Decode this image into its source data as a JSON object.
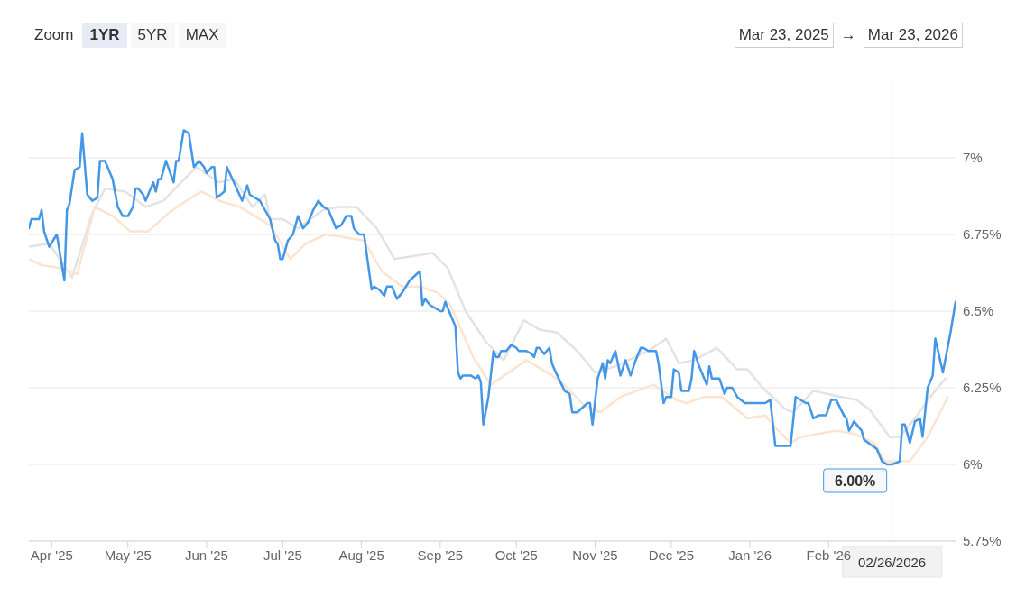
{
  "chart_data": {
    "type": "line",
    "xlim": [
      "2025-03-23",
      "2026-03-23"
    ],
    "xticks": [
      {
        "value": "2025-04-01",
        "label": "Apr '25"
      },
      {
        "value": "2025-05-01",
        "label": "May '25"
      },
      {
        "value": "2025-06-01",
        "label": "Jun '25"
      },
      {
        "value": "2025-07-01",
        "label": "Jul '25"
      },
      {
        "value": "2025-08-01",
        "label": "Aug '25"
      },
      {
        "value": "2025-09-01",
        "label": "Sep '25"
      },
      {
        "value": "2025-10-01",
        "label": "Oct '25"
      },
      {
        "value": "2025-11-01",
        "label": "Nov '25"
      },
      {
        "value": "2025-12-01",
        "label": "Dec '25"
      },
      {
        "value": "2026-01-01",
        "label": "Jan '26"
      },
      {
        "value": "2026-02-01",
        "label": "Feb '26"
      }
    ],
    "ylim": [
      5.75,
      7.25
    ],
    "yticks": [
      {
        "value": 5.75,
        "label": "5.75%"
      },
      {
        "value": 6,
        "label": "6%"
      },
      {
        "value": 6.25,
        "label": "6.25%"
      },
      {
        "value": 6.5,
        "label": "6.5%"
      },
      {
        "value": 6.75,
        "label": "6.75%"
      },
      {
        "value": 7,
        "label": "7%"
      }
    ],
    "grid": "y",
    "series": [
      {
        "color": "#e3e3e3",
        "x": [
          "2025-03-23",
          "2025-03-31",
          "2025-04-09",
          "2025-04-17",
          "2025-04-22",
          "2025-04-30",
          "2025-05-08",
          "2025-05-15",
          "2025-05-22",
          "2025-05-28",
          "2025-06-06",
          "2025-06-12",
          "2025-06-19",
          "2025-06-24",
          "2025-06-26",
          "2025-07-01",
          "2025-07-07",
          "2025-07-17",
          "2025-07-23",
          "2025-07-30",
          "2025-08-07",
          "2025-08-14",
          "2025-08-29",
          "2025-09-04",
          "2025-09-11",
          "2025-09-19",
          "2025-09-26",
          "2025-10-04",
          "2025-10-10",
          "2025-10-17",
          "2025-10-25",
          "2025-11-01",
          "2025-11-09",
          "2025-11-22",
          "2025-11-29",
          "2025-12-04",
          "2025-12-10",
          "2025-12-19",
          "2025-12-27",
          "2025-12-31",
          "2026-01-06",
          "2026-01-15",
          "2026-01-18",
          "2026-01-26",
          "2026-02-06",
          "2026-02-12",
          "2026-02-17",
          "2026-02-25",
          "2026-03-01",
          "2026-03-08",
          "2026-03-12",
          "2026-03-19"
        ],
        "values": [
          6.71,
          6.72,
          6.61,
          6.82,
          6.9,
          6.89,
          6.84,
          6.86,
          6.92,
          6.97,
          6.92,
          6.93,
          6.84,
          6.88,
          6.8,
          6.8,
          6.77,
          6.83,
          6.84,
          6.84,
          6.77,
          6.67,
          6.69,
          6.64,
          6.5,
          6.4,
          6.34,
          6.47,
          6.44,
          6.43,
          6.37,
          6.3,
          6.32,
          6.37,
          6.41,
          6.33,
          6.34,
          6.38,
          6.31,
          6.31,
          6.25,
          6.18,
          6.17,
          6.24,
          6.22,
          6.21,
          6.18,
          6.09,
          6.09,
          6.16,
          6.21,
          6.28
        ]
      },
      {
        "color": "#fde4d0",
        "x": [
          "2025-03-23",
          "2025-03-28",
          "2025-04-05",
          "2025-04-11",
          "2025-04-18",
          "2025-04-25",
          "2025-05-02",
          "2025-05-09",
          "2025-05-17",
          "2025-05-24",
          "2025-05-30",
          "2025-06-06",
          "2025-06-14",
          "2025-06-20",
          "2025-06-26",
          "2025-06-29",
          "2025-07-04",
          "2025-07-10",
          "2025-07-18",
          "2025-07-26",
          "2025-08-02",
          "2025-08-09",
          "2025-08-17",
          "2025-08-24",
          "2025-08-31",
          "2025-09-05",
          "2025-09-14",
          "2025-09-21",
          "2025-10-05",
          "2025-10-15",
          "2025-10-21",
          "2025-10-28",
          "2025-11-03",
          "2025-11-11",
          "2025-11-24",
          "2025-12-03",
          "2025-12-07",
          "2025-12-14",
          "2025-12-21",
          "2025-12-31",
          "2026-01-07",
          "2026-01-11",
          "2026-01-17",
          "2026-01-21",
          "2026-02-04",
          "2026-02-11",
          "2026-02-19",
          "2026-02-23",
          "2026-03-05",
          "2026-03-12",
          "2026-03-20"
        ],
        "values": [
          6.67,
          6.65,
          6.64,
          6.62,
          6.84,
          6.81,
          6.76,
          6.76,
          6.82,
          6.86,
          6.89,
          6.86,
          6.84,
          6.81,
          6.78,
          6.74,
          6.67,
          6.72,
          6.75,
          6.74,
          6.73,
          6.63,
          6.58,
          6.58,
          6.56,
          6.52,
          6.35,
          6.26,
          6.34,
          6.29,
          6.25,
          6.19,
          6.17,
          6.22,
          6.26,
          6.21,
          6.2,
          6.22,
          6.22,
          6.15,
          6.16,
          6.12,
          6.07,
          6.09,
          6.11,
          6.1,
          6.07,
          6.01,
          6.01,
          6.09,
          6.22
        ]
      },
      {
        "color": "#4497e6",
        "x": [
          "2025-03-23",
          "2025-03-24",
          "2025-03-27",
          "2025-03-28",
          "2025-03-29",
          "2025-03-31",
          "2025-04-03",
          "2025-04-06",
          "2025-04-07",
          "2025-04-08",
          "2025-04-10",
          "2025-04-12",
          "2025-04-13",
          "2025-04-15",
          "2025-04-17",
          "2025-04-19",
          "2025-04-20",
          "2025-04-22",
          "2025-04-24",
          "2025-04-25",
          "2025-04-27",
          "2025-04-29",
          "2025-05-01",
          "2025-05-03",
          "2025-05-04",
          "2025-05-05",
          "2025-05-07",
          "2025-05-08",
          "2025-05-11",
          "2025-05-12",
          "2025-05-13",
          "2025-05-14",
          "2025-05-16",
          "2025-05-19",
          "2025-05-20",
          "2025-05-21",
          "2025-05-23",
          "2025-05-25",
          "2025-05-27",
          "2025-05-29",
          "2025-05-31",
          "2025-06-01",
          "2025-06-03",
          "2025-06-04",
          "2025-06-05",
          "2025-06-08",
          "2025-06-09",
          "2025-06-15",
          "2025-06-17",
          "2025-06-18",
          "2025-06-20",
          "2025-06-22",
          "2025-06-26",
          "2025-06-28",
          "2025-06-29",
          "2025-06-30",
          "2025-07-01",
          "2025-07-03",
          "2025-07-05",
          "2025-07-07",
          "2025-07-09",
          "2025-07-11",
          "2025-07-13",
          "2025-07-15",
          "2025-07-17",
          "2025-07-19",
          "2025-07-21",
          "2025-07-22",
          "2025-07-24",
          "2025-07-26",
          "2025-07-28",
          "2025-07-29",
          "2025-07-31",
          "2025-08-02",
          "2025-08-04",
          "2025-08-05",
          "2025-08-06",
          "2025-08-08",
          "2025-08-10",
          "2025-08-11",
          "2025-08-13",
          "2025-08-15",
          "2025-08-17",
          "2025-08-20",
          "2025-08-24",
          "2025-08-25",
          "2025-08-26",
          "2025-08-28",
          "2025-09-01",
          "2025-09-02",
          "2025-09-03",
          "2025-09-07",
          "2025-09-08",
          "2025-09-09",
          "2025-09-10",
          "2025-09-13",
          "2025-09-15",
          "2025-09-16",
          "2025-09-17",
          "2025-09-18",
          "2025-09-20",
          "2025-09-22",
          "2025-09-23",
          "2025-09-24",
          "2025-09-25",
          "2025-09-27",
          "2025-09-29",
          "2025-10-01",
          "2025-10-02",
          "2025-10-05",
          "2025-10-07",
          "2025-10-08",
          "2025-10-09",
          "2025-10-10",
          "2025-10-12",
          "2025-10-14",
          "2025-10-15",
          "2025-10-16",
          "2025-10-20",
          "2025-10-22",
          "2025-10-23",
          "2025-10-25",
          "2025-10-29",
          "2025-10-30",
          "2025-10-31",
          "2025-11-02",
          "2025-11-04",
          "2025-11-05",
          "2025-11-06",
          "2025-11-07",
          "2025-11-09",
          "2025-11-11",
          "2025-11-13",
          "2025-11-15",
          "2025-11-17",
          "2025-11-19",
          "2025-11-20",
          "2025-11-22",
          "2025-11-25",
          "2025-11-26",
          "2025-11-28",
          "2025-11-29",
          "2025-12-01",
          "2025-12-02",
          "2025-12-04",
          "2025-12-05",
          "2025-12-08",
          "2025-12-09",
          "2025-12-10",
          "2025-12-12",
          "2025-12-15",
          "2025-12-16",
          "2025-12-17",
          "2025-12-20",
          "2025-12-22",
          "2025-12-23",
          "2025-12-25",
          "2025-12-27",
          "2025-12-30",
          "2025-12-31",
          "2026-01-03",
          "2026-01-05",
          "2026-01-06",
          "2026-01-07",
          "2026-01-09",
          "2026-01-11",
          "2026-01-17",
          "2026-01-19",
          "2026-01-23",
          "2026-01-24",
          "2026-01-26",
          "2026-01-28",
          "2026-01-31",
          "2026-02-02",
          "2026-02-04",
          "2026-02-07",
          "2026-02-08",
          "2026-02-09",
          "2026-02-11",
          "2026-02-14",
          "2026-02-15",
          "2026-02-20",
          "2026-02-22",
          "2026-02-24",
          "2026-02-26",
          "2026-03-01",
          "2026-03-02",
          "2026-03-03",
          "2026-03-05",
          "2026-03-07",
          "2026-03-09",
          "2026-03-10",
          "2026-03-12",
          "2026-03-14",
          "2026-03-15",
          "2026-03-18",
          "2026-03-21",
          "2026-03-23"
        ],
        "values": [
          6.77,
          6.8,
          6.8,
          6.83,
          6.76,
          6.71,
          6.75,
          6.6,
          6.83,
          6.85,
          6.96,
          6.97,
          7.08,
          6.88,
          6.86,
          6.87,
          6.99,
          6.99,
          6.95,
          6.93,
          6.84,
          6.81,
          6.81,
          6.84,
          6.9,
          6.9,
          6.88,
          6.86,
          6.92,
          6.89,
          6.93,
          6.93,
          6.99,
          6.92,
          6.99,
          6.99,
          7.09,
          7.08,
          6.97,
          6.99,
          6.97,
          6.95,
          6.97,
          6.97,
          6.87,
          6.89,
          6.97,
          6.86,
          6.91,
          6.88,
          6.87,
          6.86,
          6.8,
          6.73,
          6.72,
          6.67,
          6.67,
          6.73,
          6.75,
          6.81,
          6.77,
          6.79,
          6.83,
          6.86,
          6.84,
          6.83,
          6.79,
          6.77,
          6.78,
          6.81,
          6.81,
          6.77,
          6.75,
          6.75,
          6.63,
          6.57,
          6.58,
          6.57,
          6.55,
          6.58,
          6.58,
          6.54,
          6.56,
          6.6,
          6.63,
          6.52,
          6.54,
          6.52,
          6.5,
          6.5,
          6.53,
          6.45,
          6.3,
          6.28,
          6.29,
          6.29,
          6.28,
          6.29,
          6.27,
          6.13,
          6.22,
          6.37,
          6.35,
          6.35,
          6.37,
          6.37,
          6.39,
          6.38,
          6.37,
          6.37,
          6.36,
          6.35,
          6.38,
          6.38,
          6.36,
          6.38,
          6.33,
          6.31,
          6.24,
          6.23,
          6.17,
          6.17,
          6.2,
          6.2,
          6.13,
          6.28,
          6.33,
          6.28,
          6.34,
          6.33,
          6.37,
          6.29,
          6.34,
          6.29,
          6.34,
          6.38,
          6.38,
          6.37,
          6.37,
          6.33,
          6.2,
          6.22,
          6.22,
          6.31,
          6.3,
          6.24,
          6.24,
          6.28,
          6.37,
          6.32,
          6.26,
          6.32,
          6.28,
          6.28,
          6.23,
          6.25,
          6.25,
          6.22,
          6.2,
          6.2,
          6.2,
          6.2,
          6.2,
          6.2,
          6.21,
          6.06,
          6.06,
          6.22,
          6.2,
          6.2,
          6.15,
          6.16,
          6.16,
          6.21,
          6.21,
          6.16,
          6.15,
          6.11,
          6.14,
          6.11,
          6.08,
          6.05,
          6.01,
          6.0,
          6.0,
          6.01,
          6.13,
          6.13,
          6.07,
          6.14,
          6.15,
          6.09,
          6.25,
          6.29,
          6.41,
          6.3,
          6.43,
          6.53
        ]
      }
    ],
    "ref_lines": [
      {
        "axis": "x",
        "value": "2026-02-26",
        "label": "02/26/2026",
        "color": "#cccccc"
      }
    ],
    "annotations": [
      "Zoom",
      "1YR",
      "5YR",
      "MAX",
      "Mar 23, 2025",
      "→",
      "Mar 23, 2026",
      {
        "text": "6.00%",
        "x": "2026-02-26",
        "y": 6.0
      }
    ]
  }
}
